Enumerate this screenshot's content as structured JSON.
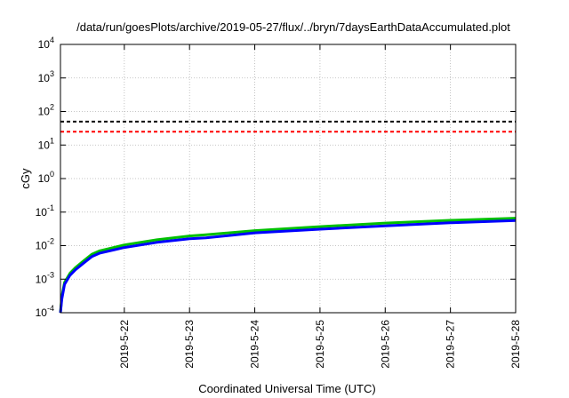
{
  "chart_data": {
    "type": "line",
    "title": "/data/run/goesPlots/archive/2019-05-27/flux/../bryn/7daysEarthDataAccumulated.plot",
    "xlabel": "Coordinated Universal Time (UTC)",
    "ylabel": "cGy",
    "y_scale": "log",
    "ylim": [
      0.0001,
      10000
    ],
    "xlim": [
      "2019-05-21T00:30",
      "2019-05-28T00:00"
    ],
    "x_ticks": [
      {
        "date": "2019-05-22T00:00",
        "label": "2019-5-22"
      },
      {
        "date": "2019-05-23T00:00",
        "label": "2019-5-23"
      },
      {
        "date": "2019-05-24T00:00",
        "label": "2019-5-24"
      },
      {
        "date": "2019-05-25T00:00",
        "label": "2019-5-25"
      },
      {
        "date": "2019-05-26T00:00",
        "label": "2019-5-26"
      },
      {
        "date": "2019-05-27T00:00",
        "label": "2019-5-27"
      },
      {
        "date": "2019-05-28T00:00",
        "label": "2019-5-28"
      }
    ],
    "y_ticks": [
      {
        "base": "10",
        "exp": "-4",
        "value": 0.0001
      },
      {
        "base": "10",
        "exp": "-3",
        "value": 0.001
      },
      {
        "base": "10",
        "exp": "-2",
        "value": 0.01
      },
      {
        "base": "10",
        "exp": "-1",
        "value": 0.1
      },
      {
        "base": "10",
        "exp": "0",
        "value": 1
      },
      {
        "base": "10",
        "exp": "1",
        "value": 10
      },
      {
        "base": "10",
        "exp": "2",
        "value": 100
      },
      {
        "base": "10",
        "exp": "3",
        "value": 1000
      },
      {
        "base": "10",
        "exp": "4",
        "value": 10000
      }
    ],
    "grid": true,
    "reference_lines": [
      {
        "value": 50,
        "color": "#000000",
        "style": "dashed"
      },
      {
        "value": 25,
        "color": "#ff0000",
        "style": "dashed"
      }
    ],
    "series": [
      {
        "color": "#00c000",
        "x": [
          "2019-05-21T00:30",
          "2019-05-21T01:00",
          "2019-05-21T02:00",
          "2019-05-21T04:00",
          "2019-05-21T06:00",
          "2019-05-21T09:00",
          "2019-05-21T12:00",
          "2019-05-21T15:00",
          "2019-05-22T00:00",
          "2019-05-22T12:00",
          "2019-05-23T00:00",
          "2019-05-23T06:00",
          "2019-05-24T00:00",
          "2019-05-25T00:00",
          "2019-05-26T00:00",
          "2019-05-27T00:00",
          "2019-05-28T00:00"
        ],
        "y": [
          0.0001,
          0.0003,
          0.0008,
          0.0015,
          0.0022,
          0.0035,
          0.0055,
          0.007,
          0.0105,
          0.015,
          0.0195,
          0.021,
          0.028,
          0.037,
          0.047,
          0.057,
          0.066
        ]
      },
      {
        "color": "#0000ff",
        "x": [
          "2019-05-21T00:30",
          "2019-05-21T01:00",
          "2019-05-21T02:00",
          "2019-05-21T04:00",
          "2019-05-21T06:00",
          "2019-05-21T09:00",
          "2019-05-21T12:00",
          "2019-05-21T15:00",
          "2019-05-22T00:00",
          "2019-05-22T12:00",
          "2019-05-23T00:00",
          "2019-05-23T06:00",
          "2019-05-24T00:00",
          "2019-05-25T00:00",
          "2019-05-26T00:00",
          "2019-05-27T00:00",
          "2019-05-28T00:00"
        ],
        "y": [
          0.0001,
          0.00025,
          0.0007,
          0.0013,
          0.0019,
          0.003,
          0.0047,
          0.006,
          0.0088,
          0.0125,
          0.016,
          0.017,
          0.024,
          0.031,
          0.039,
          0.048,
          0.056
        ]
      }
    ]
  }
}
